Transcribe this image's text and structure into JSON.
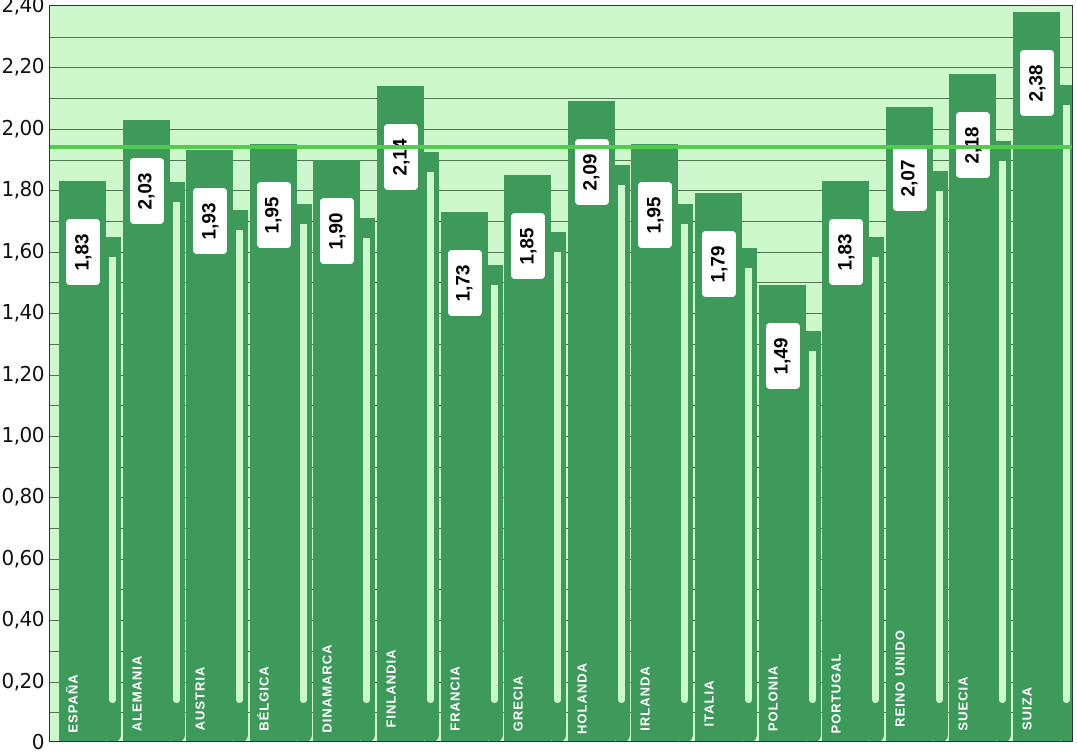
{
  "chart_data": {
    "type": "bar",
    "title": "",
    "xlabel": "",
    "ylabel": "",
    "categories": [
      "ESPAÑA",
      "ALEMANIA",
      "AUSTRIA",
      "BÉLGICA",
      "DINAMARCA",
      "FINLANDIA",
      "FRANCIA",
      "GRECIA",
      "HOLANDA",
      "IRLANDA",
      "ITALIA",
      "POLONIA",
      "PORTUGAL",
      "REINO UNIDO",
      "SUECIA",
      "SUIZA"
    ],
    "values": [
      1.83,
      2.03,
      1.93,
      1.95,
      1.9,
      2.14,
      1.73,
      1.85,
      2.09,
      1.95,
      1.79,
      1.49,
      1.83,
      2.07,
      2.18,
      2.38
    ],
    "value_labels": [
      "1,83",
      "2,03",
      "1,93",
      "1,95",
      "1,90",
      "2,14",
      "1,73",
      "1,85",
      "2,09",
      "1,95",
      "1,79",
      "1,49",
      "1,83",
      "2,07",
      "2,18",
      "2,38"
    ],
    "ylim": [
      0,
      2.4
    ],
    "yticks": [
      "0",
      "0,20",
      "0,40",
      "0,60",
      "0,80",
      "1,00",
      "1,20",
      "1,40",
      "1,60",
      "1,80",
      "2,00",
      "2,20",
      "2,40"
    ],
    "ytick_values": [
      0,
      0.2,
      0.4,
      0.6,
      0.8,
      1.0,
      1.2,
      1.4,
      1.6,
      1.8,
      2.0,
      2.2,
      2.4
    ],
    "grid": true,
    "minor_grid_step": 0.1,
    "reference_line": {
      "value": 1.94,
      "color": "#52cc4f"
    },
    "legend": null,
    "colors": {
      "bar": "#3d9a5a",
      "plot_background": "#ccf8cc",
      "label_box": "#ffffff",
      "category_text": "#ffffff"
    }
  }
}
